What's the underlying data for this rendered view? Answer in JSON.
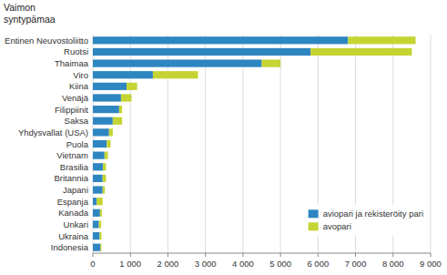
{
  "chart_data": {
    "type": "bar",
    "orientation": "horizontal",
    "stacked": true,
    "ylabel": "Vaimon\nsyntypämaa",
    "categories": [
      "Indonesia",
      "Ukraina",
      "Unkari",
      "Kanada",
      "Espanja",
      "Japani",
      "Britannia",
      "Brasilia",
      "Vietnam",
      "Puola",
      "Yhdysvallat (USA)",
      "Saksa",
      "Filippiinit",
      "Venäjä",
      "Kiina",
      "Viro",
      "Thaimaa",
      "Ruotsi",
      "Entinen Neuvostoliitto"
    ],
    "series": [
      {
        "name": "aviopari ja rekisteröity pari",
        "color": "#2e86c1",
        "values": [
          200,
          180,
          160,
          190,
          100,
          260,
          260,
          270,
          310,
          370,
          430,
          530,
          700,
          750,
          900,
          1600,
          4500,
          5800,
          6800
        ]
      },
      {
        "name": "avopari",
        "color": "#c5d432",
        "values": [
          30,
          50,
          60,
          50,
          160,
          60,
          90,
          80,
          90,
          100,
          100,
          250,
          80,
          280,
          280,
          1200,
          500,
          2700,
          1800
        ]
      }
    ],
    "xlim": [
      0,
      9000
    ],
    "xticks": [
      0,
      {
        "value": 1000,
        "label": "1 000"
      },
      {
        "value": 2000,
        "label": "2 000"
      },
      {
        "value": 3000,
        "label": "3 000"
      },
      {
        "value": 4000,
        "label": "4 000"
      },
      {
        "value": 5000,
        "label": "5 000"
      },
      {
        "value": 6000,
        "label": "6 000"
      },
      {
        "value": 7000,
        "label": "7 000"
      },
      {
        "value": 8000,
        "label": "8 000"
      },
      {
        "value": 9000,
        "label": "9 000"
      }
    ],
    "grid": true,
    "legend": "lower right"
  }
}
